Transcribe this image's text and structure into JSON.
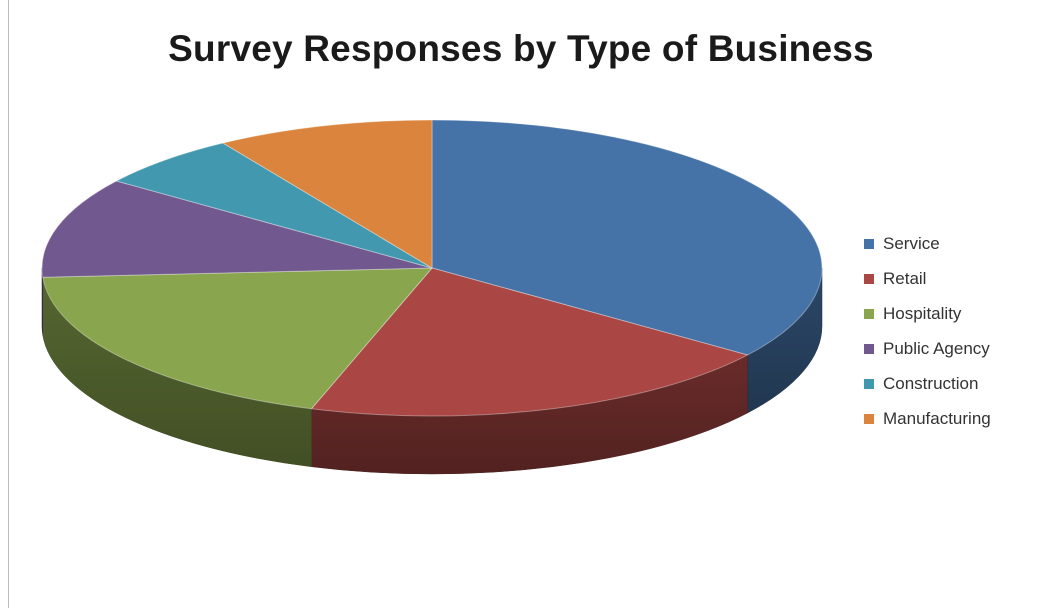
{
  "chart_data": {
    "type": "pie",
    "title": "Survey Responses by Type of Business",
    "categories": [
      "Service",
      "Retail",
      "Hospitality",
      "Public Agency",
      "Construction",
      "Manufacturing"
    ],
    "values": [
      35,
      20,
      19,
      11,
      6,
      9
    ],
    "colors": [
      "#4572A7",
      "#AA4643",
      "#89A54E",
      "#71588F",
      "#4198AF",
      "#DB843D"
    ],
    "legend": "right",
    "style": "3d-tilted"
  }
}
